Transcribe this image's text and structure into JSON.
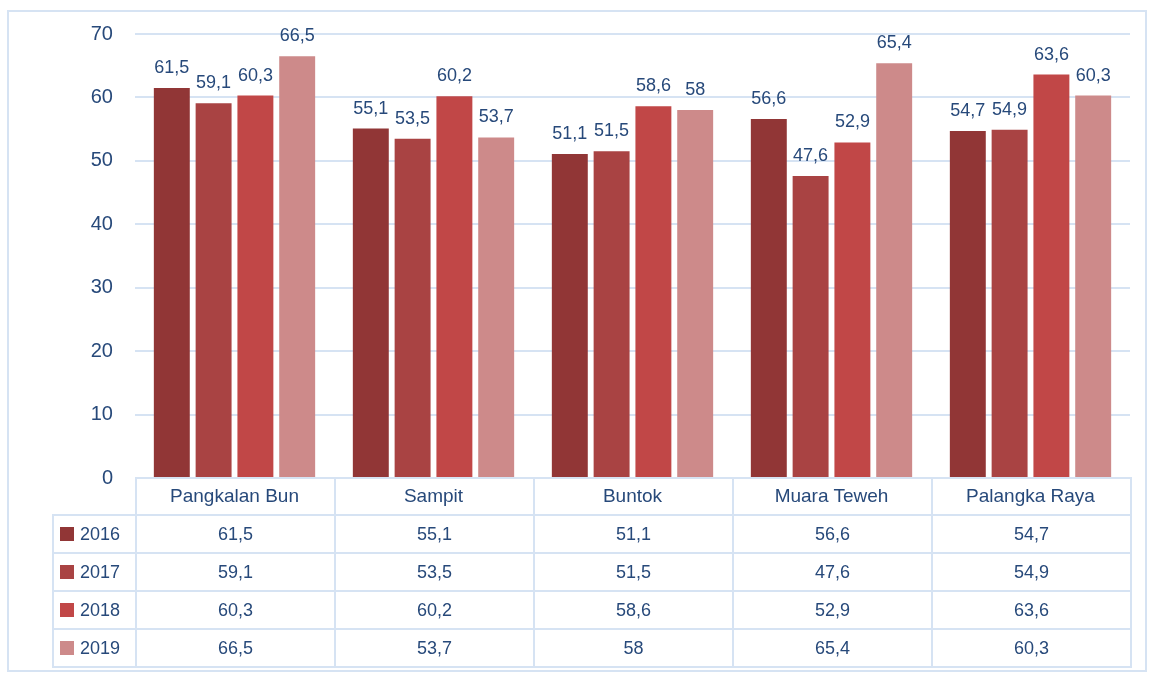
{
  "chart_data": {
    "type": "bar",
    "categories": [
      "Pangkalan Bun",
      "Sampit",
      "Buntok",
      "Muara Teweh",
      "Palangka Raya"
    ],
    "series": [
      {
        "name": "2016",
        "color": "#913636",
        "values": [
          61.5,
          55.1,
          51.1,
          56.6,
          54.7
        ],
        "value_labels": [
          "61,5",
          "55,1",
          "51,1",
          "56,6",
          "54,7"
        ]
      },
      {
        "name": "2017",
        "color": "#a94343",
        "values": [
          59.1,
          53.5,
          51.5,
          47.6,
          54.9
        ],
        "value_labels": [
          "59,1",
          "53,5",
          "51,5",
          "47,6",
          "54,9"
        ]
      },
      {
        "name": "2018",
        "color": "#c14747",
        "values": [
          60.3,
          60.2,
          58.6,
          52.9,
          63.6
        ],
        "value_labels": [
          "60,3",
          "60,2",
          "58,6",
          "52,9",
          "63,6"
        ]
      },
      {
        "name": "2019",
        "color": "#cd8a8a",
        "values": [
          66.5,
          53.7,
          58,
          65.4,
          60.3
        ],
        "value_labels": [
          "66,5",
          "53,7",
          "58",
          "65,4",
          "60,3"
        ]
      }
    ],
    "ylim": [
      0,
      70
    ],
    "yticks": [
      0,
      10,
      20,
      30,
      40,
      50,
      60,
      70
    ],
    "grid": "y",
    "legend": "bottom"
  }
}
